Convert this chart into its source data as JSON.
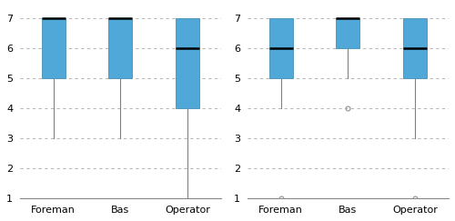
{
  "left": {
    "categories": [
      "Foreman",
      "Bas",
      "Operator"
    ],
    "box_data": [
      {
        "q1": 5,
        "median": 7,
        "q3": 7,
        "whisker_low": 3,
        "whisker_high": 7,
        "fliers": []
      },
      {
        "q1": 5,
        "median": 7,
        "q3": 7,
        "whisker_low": 3,
        "whisker_high": 7,
        "fliers": []
      },
      {
        "q1": 4,
        "median": 6,
        "q3": 7,
        "whisker_low": 1,
        "whisker_high": 7,
        "fliers": []
      }
    ]
  },
  "right": {
    "categories": [
      "Foreman",
      "Bas",
      "Operator"
    ],
    "box_data": [
      {
        "q1": 5,
        "median": 6,
        "q3": 7,
        "whisker_low": 4,
        "whisker_high": 7,
        "fliers": [
          1
        ]
      },
      {
        "q1": 6,
        "median": 7,
        "q3": 7,
        "whisker_low": 5,
        "whisker_high": 7,
        "fliers": [
          4
        ]
      },
      {
        "q1": 5,
        "median": 6,
        "q3": 7,
        "whisker_low": 3,
        "whisker_high": 7,
        "fliers": [
          1
        ]
      }
    ]
  },
  "box_color": "#4FA8D8",
  "box_edge_color": "#5599bb",
  "median_color": "#000000",
  "whisker_color": "#808080",
  "flier_color": "#909090",
  "ylim": [
    1,
    7.4
  ],
  "yticks": [
    1,
    2,
    3,
    4,
    5,
    6,
    7
  ],
  "grid_color": "#aaaaaa",
  "background_color": "#ffffff",
  "box_width": 0.35,
  "tick_fontsize": 8,
  "median_linewidth": 1.8
}
